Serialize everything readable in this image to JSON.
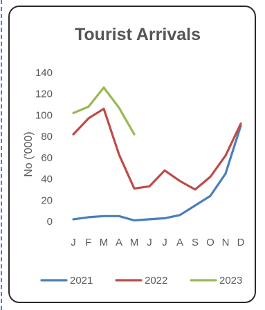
{
  "chart_data": {
    "type": "line",
    "title": "Tourist Arrivals",
    "ylabel": "No ('000)",
    "xlabel": "",
    "categories": [
      "J",
      "F",
      "M",
      "A",
      "M",
      "J",
      "J",
      "A",
      "S",
      "O",
      "N",
      "D"
    ],
    "ylim": [
      0,
      140
    ],
    "yticks": [
      0,
      20,
      40,
      60,
      80,
      100,
      120,
      140
    ],
    "grid": false,
    "legend_position": "bottom",
    "series": [
      {
        "name": "2021",
        "color": "#4a7ebb",
        "values": [
          2,
          4,
          5,
          5,
          1,
          2,
          3,
          6,
          15,
          24,
          45,
          90
        ]
      },
      {
        "name": "2022",
        "color": "#be4b48",
        "values": [
          82,
          97,
          106,
          63,
          31,
          33,
          48,
          38,
          30,
          42,
          62,
          92
        ]
      },
      {
        "name": "2023",
        "color": "#98b954",
        "values": [
          102,
          108,
          126,
          107,
          82,
          null,
          null,
          null,
          null,
          null,
          null,
          null
        ]
      }
    ]
  }
}
